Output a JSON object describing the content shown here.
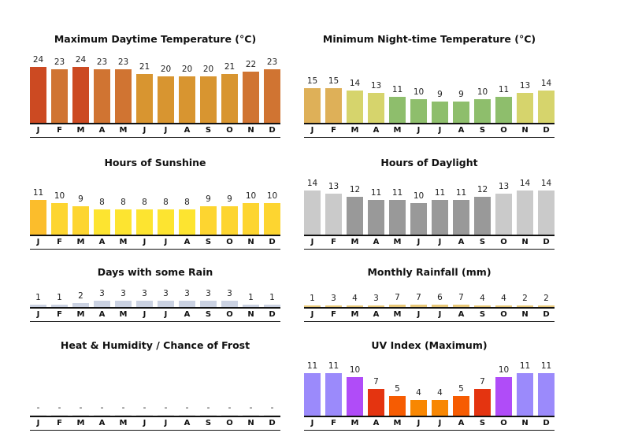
{
  "months": [
    "J",
    "F",
    "M",
    "A",
    "M",
    "J",
    "J",
    "A",
    "S",
    "O",
    "N",
    "D"
  ],
  "chart_data": [
    {
      "id": "max-temp",
      "type": "bar",
      "title": "Maximum Daytime Temperature (°C)",
      "categories": [
        "J",
        "F",
        "M",
        "A",
        "M",
        "J",
        "J",
        "A",
        "S",
        "O",
        "N",
        "D"
      ],
      "values": [
        24,
        23,
        24,
        23,
        23,
        21,
        20,
        20,
        20,
        21,
        22,
        23
      ],
      "labels": [
        "24",
        "23",
        "24",
        "23",
        "23",
        "21",
        "20",
        "20",
        "20",
        "21",
        "22",
        "23"
      ],
      "colors": [
        "#cc4a22",
        "#d07432",
        "#cc4a22",
        "#d07432",
        "#d07432",
        "#d89530",
        "#d89530",
        "#d89530",
        "#d89530",
        "#d89530",
        "#d07432",
        "#d07432"
      ],
      "ylim": [
        0,
        24
      ],
      "xlabel": "",
      "ylabel": ""
    },
    {
      "id": "min-temp",
      "type": "bar",
      "title": "Minimum Night-time Temperature (°C)",
      "categories": [
        "J",
        "F",
        "M",
        "A",
        "M",
        "J",
        "J",
        "A",
        "S",
        "O",
        "N",
        "D"
      ],
      "values": [
        15,
        15,
        14,
        13,
        11,
        10,
        9,
        9,
        10,
        11,
        13,
        14
      ],
      "labels": [
        "15",
        "15",
        "14",
        "13",
        "11",
        "10",
        "9",
        "9",
        "10",
        "11",
        "13",
        "14"
      ],
      "colors": [
        "#deb058",
        "#deb058",
        "#d6d46c",
        "#d6d46c",
        "#8ebe6c",
        "#8ebe6c",
        "#8ebe6c",
        "#8ebe6c",
        "#8ebe6c",
        "#8ebe6c",
        "#d6d46c",
        "#d6d46c"
      ],
      "ylim": [
        0,
        24
      ],
      "xlabel": "",
      "ylabel": ""
    },
    {
      "id": "sunshine",
      "type": "bar",
      "title": "Hours of Sunshine",
      "categories": [
        "J",
        "F",
        "M",
        "A",
        "M",
        "J",
        "J",
        "A",
        "S",
        "O",
        "N",
        "D"
      ],
      "values": [
        11,
        10,
        9,
        8,
        8,
        8,
        8,
        8,
        9,
        9,
        10,
        10
      ],
      "labels": [
        "11",
        "10",
        "9",
        "8",
        "8",
        "8",
        "8",
        "8",
        "9",
        "9",
        "10",
        "10"
      ],
      "colors": [
        "#fbbd2c",
        "#fdd530",
        "#fdd530",
        "#fde430",
        "#fde430",
        "#fde430",
        "#fde430",
        "#fde430",
        "#fdd530",
        "#fdd530",
        "#fdd530",
        "#fdd530"
      ],
      "ylim": [
        0,
        16
      ],
      "xlabel": "",
      "ylabel": ""
    },
    {
      "id": "daylight",
      "type": "bar",
      "title": "Hours of Daylight",
      "categories": [
        "J",
        "F",
        "M",
        "A",
        "M",
        "J",
        "J",
        "A",
        "S",
        "O",
        "N",
        "D"
      ],
      "values": [
        14,
        13,
        12,
        11,
        11,
        10,
        11,
        11,
        12,
        13,
        14,
        14
      ],
      "labels": [
        "14",
        "13",
        "12",
        "11",
        "11",
        "10",
        "11",
        "11",
        "12",
        "13",
        "14",
        "14"
      ],
      "colors": [
        "#cacaca",
        "#cacaca",
        "#999999",
        "#999999",
        "#999999",
        "#999999",
        "#999999",
        "#999999",
        "#999999",
        "#cacaca",
        "#cacaca",
        "#cacaca"
      ],
      "ylim": [
        0,
        18
      ],
      "xlabel": "",
      "ylabel": ""
    },
    {
      "id": "rain-days",
      "type": "bar",
      "title": "Days with some Rain",
      "categories": [
        "J",
        "F",
        "M",
        "A",
        "M",
        "J",
        "J",
        "A",
        "S",
        "O",
        "N",
        "D"
      ],
      "values": [
        1,
        1,
        2,
        3,
        3,
        3,
        3,
        3,
        3,
        3,
        1,
        1
      ],
      "labels": [
        "1",
        "1",
        "2",
        "3",
        "3",
        "3",
        "3",
        "3",
        "3",
        "3",
        "1",
        "1"
      ],
      "colors": [
        "#cbd2e2",
        "#cbd2e2",
        "#cbd2e2",
        "#cbd2e2",
        "#cbd2e2",
        "#cbd2e2",
        "#cbd2e2",
        "#cbd2e2",
        "#cbd2e2",
        "#cbd2e2",
        "#cbd2e2",
        "#cbd2e2"
      ],
      "ylim": [
        0,
        31
      ],
      "xlabel": "",
      "ylabel": ""
    },
    {
      "id": "rainfall",
      "type": "bar",
      "title": "Monthly Rainfall (mm)",
      "categories": [
        "J",
        "F",
        "M",
        "A",
        "M",
        "J",
        "J",
        "A",
        "S",
        "O",
        "N",
        "D"
      ],
      "values": [
        1,
        3,
        4,
        3,
        7,
        7,
        6,
        7,
        4,
        4,
        2,
        2
      ],
      "labels": [
        "1",
        "3",
        "4",
        "3",
        "7",
        "7",
        "6",
        "7",
        "4",
        "4",
        "2",
        "2"
      ],
      "colors": [
        "#e8c878",
        "#e8c878",
        "#e8c878",
        "#e8c878",
        "#e8c878",
        "#e8c878",
        "#e8c878",
        "#e8c878",
        "#e8c878",
        "#e8c878",
        "#e8c878",
        "#e8c878"
      ],
      "ylim": [
        0,
        400
      ],
      "xlabel": "",
      "ylabel": ""
    },
    {
      "id": "heat-frost",
      "type": "bar",
      "title": "Heat & Humidity / Chance of Frost",
      "categories": [
        "J",
        "F",
        "M",
        "A",
        "M",
        "J",
        "J",
        "A",
        "S",
        "O",
        "N",
        "D"
      ],
      "values": [
        0,
        0,
        0,
        0,
        0,
        0,
        0,
        0,
        0,
        0,
        0,
        0
      ],
      "labels": [
        "-",
        "-",
        "-",
        "-",
        "-",
        "-",
        "-",
        "-",
        "-",
        "-",
        "-",
        "-"
      ],
      "colors": [
        "#e4e4e4",
        "#e4e4e4",
        "#e4e4e4",
        "#e4e4e4",
        "#e4e4e4",
        "#e4e4e4",
        "#e4e4e4",
        "#e4e4e4",
        "#e4e4e4",
        "#e4e4e4",
        "#e4e4e4",
        "#e4e4e4"
      ],
      "ylim": [
        0,
        10
      ],
      "xlabel": "",
      "ylabel": ""
    },
    {
      "id": "uv",
      "type": "bar",
      "title": "UV Index (Maximum)",
      "categories": [
        "J",
        "F",
        "M",
        "A",
        "M",
        "J",
        "J",
        "A",
        "S",
        "O",
        "N",
        "D"
      ],
      "values": [
        11,
        11,
        10,
        7,
        5,
        4,
        4,
        5,
        7,
        10,
        11,
        11
      ],
      "labels": [
        "11",
        "11",
        "10",
        "7",
        "5",
        "4",
        "4",
        "5",
        "7",
        "10",
        "11",
        "11"
      ],
      "colors": [
        "#9b8afb",
        "#9b8afb",
        "#b04cf8",
        "#e43410",
        "#f65c02",
        "#f88702",
        "#f88702",
        "#f65c02",
        "#e43410",
        "#b04cf8",
        "#9b8afb",
        "#9b8afb"
      ],
      "ylim": [
        0,
        11
      ],
      "xlabel": "",
      "ylabel": ""
    }
  ]
}
